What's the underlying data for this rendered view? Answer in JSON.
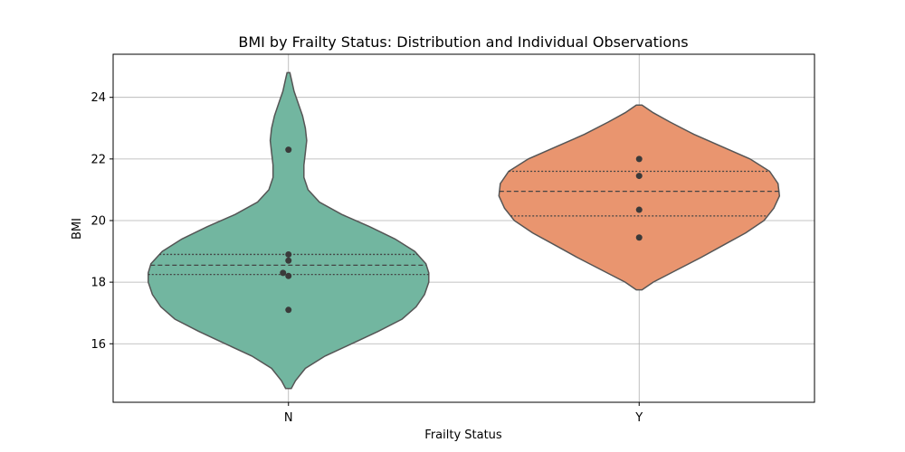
{
  "chart_data": {
    "type": "violin",
    "title": "BMI by Frailty Status: Distribution and Individual Observations",
    "xlabel": "Frailty Status",
    "ylabel": "BMI",
    "ylim": [
      14.1,
      25.4
    ],
    "yticks": [
      16,
      18,
      20,
      22,
      24
    ],
    "grid": true,
    "categories": [
      "N",
      "Y"
    ],
    "series": [
      {
        "category": "N",
        "color": "#72b6a0",
        "points": [
          22.3,
          18.9,
          18.7,
          18.3,
          18.2,
          17.1
        ],
        "quartiles": [
          18.25,
          18.55,
          18.9
        ],
        "range": [
          14.55,
          24.8
        ],
        "density": [
          [
            14.55,
            0.02
          ],
          [
            14.8,
            0.05
          ],
          [
            15.2,
            0.12
          ],
          [
            15.6,
            0.26
          ],
          [
            16.0,
            0.45
          ],
          [
            16.4,
            0.64
          ],
          [
            16.8,
            0.81
          ],
          [
            17.2,
            0.91
          ],
          [
            17.6,
            0.97
          ],
          [
            18.0,
            1.0
          ],
          [
            18.3,
            1.0
          ],
          [
            18.6,
            0.98
          ],
          [
            19.0,
            0.9
          ],
          [
            19.4,
            0.76
          ],
          [
            19.8,
            0.58
          ],
          [
            20.2,
            0.38
          ],
          [
            20.6,
            0.22
          ],
          [
            21.0,
            0.14
          ],
          [
            21.4,
            0.11
          ],
          [
            21.8,
            0.11
          ],
          [
            22.2,
            0.12
          ],
          [
            22.6,
            0.13
          ],
          [
            23.0,
            0.12
          ],
          [
            23.4,
            0.1
          ],
          [
            23.8,
            0.07
          ],
          [
            24.2,
            0.04
          ],
          [
            24.6,
            0.02
          ],
          [
            24.8,
            0.01
          ]
        ]
      },
      {
        "category": "Y",
        "color": "#e9956f",
        "points": [
          22.0,
          21.45,
          20.35,
          19.45
        ],
        "quartiles": [
          20.15,
          20.95,
          21.6
        ],
        "range": [
          17.75,
          23.75
        ],
        "density": [
          [
            17.75,
            0.02
          ],
          [
            18.0,
            0.1
          ],
          [
            18.4,
            0.27
          ],
          [
            18.8,
            0.44
          ],
          [
            19.2,
            0.6
          ],
          [
            19.6,
            0.76
          ],
          [
            20.0,
            0.89
          ],
          [
            20.4,
            0.96
          ],
          [
            20.8,
            1.0
          ],
          [
            21.2,
            0.99
          ],
          [
            21.6,
            0.93
          ],
          [
            22.0,
            0.79
          ],
          [
            22.4,
            0.59
          ],
          [
            22.8,
            0.39
          ],
          [
            23.2,
            0.22
          ],
          [
            23.5,
            0.1
          ],
          [
            23.75,
            0.02
          ]
        ]
      }
    ]
  }
}
